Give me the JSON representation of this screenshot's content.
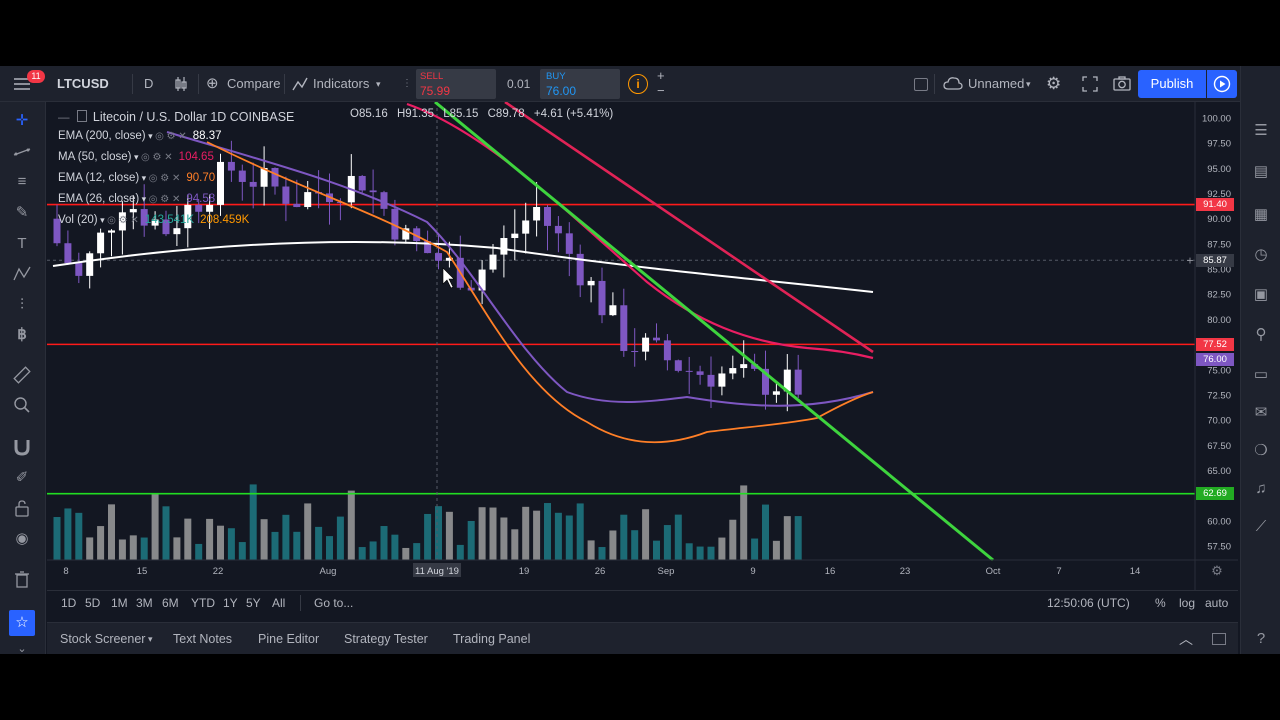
{
  "toolbar": {
    "notification_count": "11",
    "symbol": "LTCUSD",
    "interval": "D",
    "compare_label": "Compare",
    "indicators_label": "Indicators",
    "sell_label": "SELL",
    "sell_price": "75.99",
    "spread": "0.01",
    "buy_label": "BUY",
    "buy_price": "76.00",
    "layout_name": "Unnamed",
    "publish_label": "Publish"
  },
  "legend": {
    "title": "Litecoin / U.S. Dollar  1D  COINBASE",
    "open": "O85.16",
    "high": "H91.35",
    "low": "L85.15",
    "close": "C89.78",
    "change": "+4.61 (+5.41%)",
    "indicators": [
      {
        "label": "EMA (200, close)",
        "value": "88.37",
        "value_color": "#ffffff"
      },
      {
        "label": "MA (50, close)",
        "value": "104.65",
        "value_color": "#e91e63"
      },
      {
        "label": "EMA (12, close)",
        "value": "90.70",
        "value_color": "#ff7f27"
      },
      {
        "label": "EMA (26, close)",
        "value": "94.58",
        "value_color": "#7e57c2"
      },
      {
        "label": "Vol (20)",
        "value": "143.541K",
        "value2": "208.459K",
        "value_color": "#26a69a"
      }
    ]
  },
  "chart_data": {
    "type": "candlestick",
    "y_ticks": [
      "100.00",
      "97.50",
      "95.00",
      "92.50",
      "90.00",
      "87.50",
      "85.00",
      "82.50",
      "80.00",
      "77.50",
      "75.00",
      "72.50",
      "70.00",
      "67.50",
      "65.00",
      "62.50",
      "60.00",
      "57.50"
    ],
    "x_ticks": [
      "8",
      "15",
      "22",
      "Aug",
      "11 Aug '19",
      "19",
      "26",
      "Sep",
      "9",
      "16",
      "23",
      "Oct",
      "7",
      "14"
    ],
    "ylim": [
      56.5,
      101.5
    ],
    "price_tags": [
      {
        "label": "91.40",
        "value": 91.4,
        "color": "#f23645"
      },
      {
        "label": "85.87",
        "value": 85.87,
        "color": "#363a45"
      },
      {
        "label": "77.52",
        "value": 77.52,
        "color": "#f23645"
      },
      {
        "label": "76.00",
        "value": 76.0,
        "color": "#7e57c2"
      },
      {
        "label": "62.69",
        "value": 62.69,
        "color": "#22ab22"
      }
    ],
    "horizontal_lines": [
      {
        "value": 91.4,
        "color": "#ff1a1a"
      },
      {
        "value": 77.52,
        "color": "#ff1a1a"
      },
      {
        "value": 62.69,
        "color": "#22dd22"
      }
    ]
  },
  "bottom": {
    "ranges": [
      "1D",
      "5D",
      "1M",
      "3M",
      "6M",
      "YTD",
      "1Y",
      "5Y",
      "All"
    ],
    "goto_label": "Go to...",
    "clock": "12:50:06 (UTC)",
    "percent_label": "%",
    "log_label": "log",
    "auto_label": "auto"
  },
  "panels": [
    "Stock Screener",
    "Text Notes",
    "Pine Editor",
    "Strategy Tester",
    "Trading Panel"
  ]
}
